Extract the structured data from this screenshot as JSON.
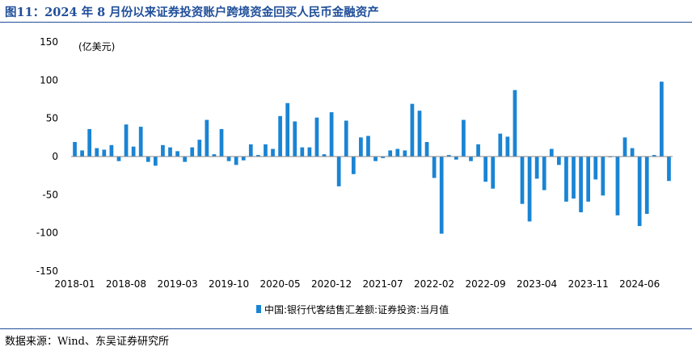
{
  "title": "图11：2024 年 8 月份以来证券投资账户跨境资金回买人民币金融资产",
  "source": "数据来源：Wind、东吴证券研究所",
  "chart_data": {
    "type": "bar",
    "unit_label": "(亿美元)",
    "ylim": [
      -150,
      150
    ],
    "yticks": [
      150,
      100,
      50,
      0,
      -50,
      -100,
      -150
    ],
    "x_tick_labels": [
      "2018-01",
      "2018-08",
      "2019-03",
      "2019-10",
      "2020-05",
      "2020-12",
      "2021-07",
      "2022-02",
      "2022-09",
      "2023-04",
      "2023-11",
      "2024-06"
    ],
    "x_tick_every": 7,
    "grid": false,
    "legend_position": "bottom",
    "color": "#1a84d4",
    "series": [
      {
        "name": "中国:银行代客结售汇差额:证券投资:当月值",
        "start": "2018-01",
        "values": [
          19,
          8,
          36,
          11,
          9,
          15,
          -6,
          42,
          13,
          39,
          -7,
          -12,
          15,
          12,
          7,
          -7,
          12,
          22,
          48,
          3,
          36,
          -6,
          -11,
          -5,
          16,
          2,
          16,
          10,
          53,
          70,
          46,
          12,
          12,
          51,
          3,
          58,
          -39,
          47,
          -23,
          25,
          27,
          -6,
          -2,
          8,
          10,
          8,
          69,
          60,
          19,
          -28,
          -101,
          2,
          -4,
          48,
          -6,
          16,
          -33,
          -42,
          30,
          26,
          87,
          -62,
          -85,
          -29,
          -44,
          10,
          -11,
          -59,
          -55,
          -73,
          -59,
          -30,
          -51,
          -1,
          -77,
          25,
          11,
          -91,
          -75,
          2,
          98,
          -32
        ]
      }
    ]
  }
}
